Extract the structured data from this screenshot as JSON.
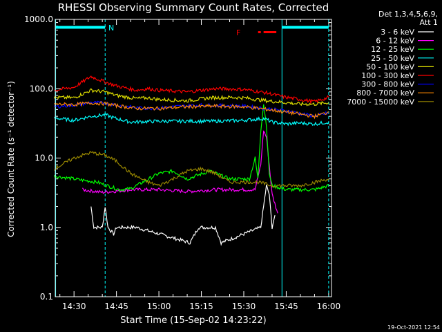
{
  "chart_data": {
    "type": "line",
    "title": "RHESSI Observing Summary Count Rates, Corrected",
    "xlabel": "Start Time (15-Sep-02 14:23:22)",
    "ylabel": "Corrected Count Rate (s⁻¹ detector⁻¹)",
    "xlim": [
      "14:23:22",
      "16:01:00"
    ],
    "ylim": [
      0.1,
      1000
    ],
    "yscale": "log",
    "x_ticks": [
      "14:30",
      "14:45",
      "15:00",
      "15:15",
      "15:30",
      "15:45",
      "16:00"
    ],
    "y_ticks": [
      "0.1",
      "1.0",
      "10.0",
      "100.0",
      "1000.0"
    ],
    "legend_header": [
      "Det 1,3,4,5,6,9,",
      "Att 1"
    ],
    "legend_position": "right",
    "series": [
      {
        "name": "3 - 6 keV",
        "color": "#ffffff",
        "points": [
          [
            "14:36",
            2.0
          ],
          [
            "14:37",
            1.0
          ],
          [
            "14:40",
            1.0
          ],
          [
            "14:41",
            2.0
          ],
          [
            "14:42",
            1.0
          ],
          [
            "14:44",
            0.8
          ],
          [
            "14:45",
            1.0
          ],
          [
            "14:52",
            1.0
          ],
          [
            "15:11",
            0.6
          ],
          [
            "15:14",
            1.0
          ],
          [
            "15:20",
            1.0
          ],
          [
            "15:22",
            0.6
          ],
          [
            "15:36",
            1.0
          ],
          [
            "15:37",
            2.0
          ],
          [
            "15:38",
            4.0
          ],
          [
            "15:39",
            3.0
          ],
          [
            "15:40",
            1.0
          ],
          [
            "15:41",
            1.5
          ]
        ]
      },
      {
        "name": "6 - 12 keV",
        "color": "#ff00ff",
        "points": [
          [
            "14:33",
            3.5
          ],
          [
            "14:40",
            3.2
          ],
          [
            "14:50",
            3.5
          ],
          [
            "15:00",
            3.5
          ],
          [
            "15:10",
            3.3
          ],
          [
            "15:20",
            3.5
          ],
          [
            "15:30",
            3.5
          ],
          [
            "15:34",
            3.5
          ],
          [
            "15:36",
            8.0
          ],
          [
            "15:37",
            25.0
          ],
          [
            "15:38",
            20.0
          ],
          [
            "15:39",
            8.0
          ],
          [
            "15:40",
            3.0
          ],
          [
            "15:42",
            1.6
          ]
        ]
      },
      {
        "name": "12 - 25 keV",
        "color": "#00ff00",
        "points": [
          [
            "14:23",
            5.5
          ],
          [
            "14:30",
            5.0
          ],
          [
            "14:38",
            4.5
          ],
          [
            "14:46",
            3.5
          ],
          [
            "14:50",
            3.6
          ],
          [
            "15:00",
            6.0
          ],
          [
            "15:05",
            6.5
          ],
          [
            "15:10",
            5.0
          ],
          [
            "15:18",
            6.5
          ],
          [
            "15:25",
            5.0
          ],
          [
            "15:32",
            5.0
          ],
          [
            "15:34",
            10.0
          ],
          [
            "15:35",
            5.0
          ],
          [
            "15:36",
            25.0
          ],
          [
            "15:37",
            60.0
          ],
          [
            "15:38",
            30.0
          ],
          [
            "15:39",
            6.0
          ],
          [
            "15:40",
            4.0
          ],
          [
            "15:45",
            3.5
          ],
          [
            "15:55",
            3.5
          ],
          [
            "16:00",
            4.0
          ]
        ]
      },
      {
        "name": "25 - 50 keV",
        "color": "#00ffff",
        "points": [
          [
            "14:23",
            38
          ],
          [
            "14:30",
            35
          ],
          [
            "14:36",
            40
          ],
          [
            "14:41",
            42
          ],
          [
            "14:45",
            37
          ],
          [
            "14:50",
            33
          ],
          [
            "15:00",
            34
          ],
          [
            "15:10",
            34
          ],
          [
            "15:20",
            34
          ],
          [
            "15:30",
            35
          ],
          [
            "15:37",
            37
          ],
          [
            "15:38",
            36
          ],
          [
            "15:40",
            33
          ],
          [
            "15:45",
            31
          ],
          [
            "15:50",
            32
          ],
          [
            "15:55",
            31
          ],
          [
            "16:00",
            33
          ]
        ]
      },
      {
        "name": "50 - 100 keV",
        "color": "#dddd00",
        "points": [
          [
            "14:23",
            75
          ],
          [
            "14:30",
            74
          ],
          [
            "14:36",
            95
          ],
          [
            "14:41",
            90
          ],
          [
            "14:45",
            80
          ],
          [
            "14:52",
            72
          ],
          [
            "14:56",
            74
          ],
          [
            "15:00",
            70
          ],
          [
            "15:10",
            67
          ],
          [
            "15:18",
            74
          ],
          [
            "15:25",
            75
          ],
          [
            "15:30",
            74
          ],
          [
            "15:38",
            67
          ],
          [
            "15:45",
            63
          ],
          [
            "15:50",
            60
          ],
          [
            "15:55",
            60
          ],
          [
            "16:00",
            63
          ]
        ]
      },
      {
        "name": "100 - 300 keV",
        "color": "#ff0000",
        "points": [
          [
            "14:23",
            95
          ],
          [
            "14:30",
            105
          ],
          [
            "14:36",
            150
          ],
          [
            "14:41",
            125
          ],
          [
            "14:45",
            110
          ],
          [
            "14:52",
            95
          ],
          [
            "14:56",
            100
          ],
          [
            "15:00",
            95
          ],
          [
            "15:10",
            90
          ],
          [
            "15:20",
            100
          ],
          [
            "15:30",
            98
          ],
          [
            "15:38",
            87
          ],
          [
            "15:45",
            75
          ],
          [
            "15:50",
            70
          ],
          [
            "15:55",
            65
          ],
          [
            "16:00",
            75
          ]
        ]
      },
      {
        "name": "300 - 800 keV",
        "color": "#0000ff",
        "points": [
          [
            "14:23",
            55
          ],
          [
            "14:30",
            58
          ],
          [
            "14:36",
            63
          ],
          [
            "14:41",
            62
          ],
          [
            "14:45",
            58
          ],
          [
            "14:52",
            53
          ],
          [
            "15:00",
            52
          ],
          [
            "15:05",
            55
          ],
          [
            "15:15",
            58
          ],
          [
            "15:25",
            57
          ],
          [
            "15:30",
            56
          ],
          [
            "15:37",
            52
          ],
          [
            "15:45",
            48
          ],
          [
            "15:55",
            40
          ],
          [
            "16:00",
            45
          ]
        ]
      },
      {
        "name": "800 - 7000 keV",
        "color": "#ff8800",
        "points": [
          [
            "14:23",
            60
          ],
          [
            "14:30",
            59
          ],
          [
            "14:36",
            62
          ],
          [
            "14:41",
            61
          ],
          [
            "14:45",
            57
          ],
          [
            "14:52",
            52
          ],
          [
            "15:00",
            52
          ],
          [
            "15:10",
            55
          ],
          [
            "15:20",
            56
          ],
          [
            "15:30",
            55
          ],
          [
            "15:37",
            51
          ],
          [
            "15:45",
            46
          ],
          [
            "15:55",
            40
          ],
          [
            "16:00",
            46
          ]
        ]
      },
      {
        "name": "7000 - 15000 keV",
        "color": "#998800",
        "points": [
          [
            "14:23",
            7.0
          ],
          [
            "14:30",
            10.0
          ],
          [
            "14:36",
            12.0
          ],
          [
            "14:41",
            11.0
          ],
          [
            "14:45",
            9.0
          ],
          [
            "14:50",
            6.0
          ],
          [
            "14:56",
            4.5
          ],
          [
            "15:00",
            4.0
          ],
          [
            "15:05",
            5.0
          ],
          [
            "15:10",
            6.5
          ],
          [
            "15:15",
            7.0
          ],
          [
            "15:20",
            6.0
          ],
          [
            "15:25",
            4.5
          ],
          [
            "15:35",
            4.5
          ],
          [
            "15:40",
            4.0
          ],
          [
            "15:50",
            4.0
          ],
          [
            "16:00",
            5.0
          ]
        ]
      }
    ],
    "markers": {
      "cyan_vertical_times": [
        "14:23:30",
        "14:41:00",
        "15:43:30",
        "16:00:00"
      ],
      "solid_vertical_times": [
        "14:23:30",
        "15:43:30"
      ],
      "night_bars": [
        [
          "14:23:30",
          "14:41:00"
        ],
        [
          "15:43:30",
          "16:00:00"
        ]
      ],
      "night_bar_level": 700,
      "night_bar_color": "#00ffff",
      "night_label": "N",
      "flare_label": "F",
      "flare_bar": [
        "15:37:00",
        "15:41:30"
      ],
      "flare_bar_color": "#ff0000"
    }
  },
  "footer": {
    "timestamp": "19-Oct-2021 12:54"
  }
}
